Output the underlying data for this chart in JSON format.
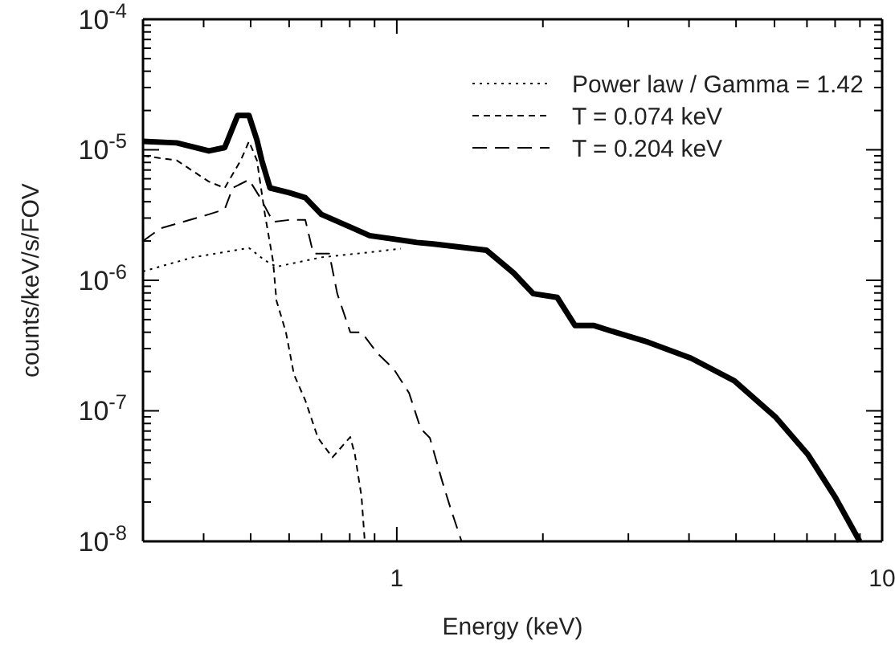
{
  "chart_data": {
    "type": "line",
    "xlabel": "Energy (keV)",
    "ylabel": "counts/keV/s/FOV",
    "log": "xy",
    "legend": "top right",
    "xlim": [
      0.3,
      10
    ],
    "ylim": [
      1e-08,
      0.0001
    ],
    "xticks": [
      {
        "value": 0.3,
        "label": null
      },
      {
        "value": 0.4,
        "label": null
      },
      {
        "value": 0.5,
        "label": null
      },
      {
        "value": 0.6,
        "label": null
      },
      {
        "value": 0.7,
        "label": null
      },
      {
        "value": 0.8,
        "label": null
      },
      {
        "value": 0.9,
        "label": null
      },
      1,
      {
        "value": 2,
        "label": null
      },
      {
        "value": 3,
        "label": null
      },
      {
        "value": 4,
        "label": null
      },
      {
        "value": 5,
        "label": null
      },
      {
        "value": 6,
        "label": null
      },
      {
        "value": 7,
        "label": null
      },
      {
        "value": 8,
        "label": null
      },
      {
        "value": 9,
        "label": null
      },
      10
    ],
    "yticks": [
      {
        "value": 1e-08,
        "label": "10$^{-8}$"
      },
      {
        "value": 1e-07,
        "label": "10$^{-7}$"
      },
      {
        "value": 1e-06,
        "label": "10$^{-6}$"
      },
      {
        "value": 1e-05,
        "label": "10$^{-5}$"
      },
      {
        "value": 0.0001,
        "label": "10$^{-4}$"
      }
    ],
    "series": [
      {
        "color": "#000000",
        "line_style": "solid",
        "x": [
          0.3,
          0.352,
          0.41,
          0.442,
          0.47,
          0.496,
          0.515,
          0.527,
          0.548,
          0.6,
          0.648,
          0.699,
          0.814,
          0.879,
          1.1,
          1.19,
          1.53,
          1.74,
          1.91,
          2.14,
          2.33,
          2.55,
          2.82,
          3.29,
          4.04,
          4.96,
          6.04,
          7.04,
          8.02,
          8.99
        ],
        "values": [
          1.16e-05,
          1.13e-05,
          9.8e-06,
          1.04e-05,
          1.83e-05,
          1.83e-05,
          1.19e-05,
          8.3e-06,
          5.1e-06,
          4.7e-06,
          4.3e-06,
          3.2e-06,
          2.5e-06,
          2.2e-06,
          1.95e-06,
          1.9e-06,
          1.7e-06,
          1.14e-06,
          7.9e-07,
          7.4e-07,
          4.5e-07,
          4.5e-07,
          4e-07,
          3.36e-07,
          2.53e-07,
          1.7e-07,
          8.9e-08,
          4.6e-08,
          2.15e-08,
          1e-08
        ]
      },
      {
        "name": "Power law / Gamma = 1.42",
        "color": "#000000",
        "line_style": "dotted",
        "x": [
          0.3,
          0.38,
          0.496,
          0.535,
          0.565,
          0.699,
          0.879,
          1.02
        ],
        "values": [
          1.17e-06,
          1.5e-06,
          1.77e-06,
          1.42e-06,
          1.27e-06,
          1.5e-06,
          1.64e-06,
          1.75e-06
        ]
      },
      {
        "name": "T = 0.074 keV",
        "color": "#000000",
        "line_style": "dashed",
        "x": [
          0.3,
          0.352,
          0.41,
          0.442,
          0.477,
          0.496,
          0.515,
          0.535,
          0.556,
          0.565,
          0.591,
          0.614,
          0.648,
          0.688,
          0.737,
          0.802,
          0.82,
          0.846,
          0.859
        ],
        "values": [
          9e-06,
          8.3e-06,
          5.7e-06,
          5.1e-06,
          8.3e-06,
          1.16e-05,
          8.3e-06,
          3.2e-06,
          1.4e-06,
          7e-07,
          4e-07,
          1.9e-07,
          1.2e-07,
          6.2e-08,
          4.4e-08,
          6.3e-08,
          4.6e-08,
          2.2e-08,
          1e-08
        ]
      },
      {
        "name": "T = 0.204 keV",
        "color": "#000000",
        "line_style": "longdash",
        "x": [
          0.3,
          0.326,
          0.41,
          0.442,
          0.459,
          0.496,
          0.523,
          0.556,
          0.6,
          0.648,
          0.673,
          0.726,
          0.754,
          0.802,
          0.846,
          0.913,
          0.985,
          1.06,
          1.12,
          1.17,
          1.24,
          1.29,
          1.36
        ],
        "values": [
          2e-06,
          2.5e-06,
          3.2e-06,
          3.5e-06,
          5.1e-06,
          5.9e-06,
          4.3e-06,
          2.8e-06,
          2.9e-06,
          2.9e-06,
          1.6e-06,
          1.6e-06,
          7.9e-07,
          4e-07,
          4e-07,
          2.75e-07,
          2.1e-07,
          1.37e-07,
          7.3e-08,
          6.2e-08,
          2.9e-08,
          1.8e-08,
          1e-08
        ]
      }
    ]
  }
}
